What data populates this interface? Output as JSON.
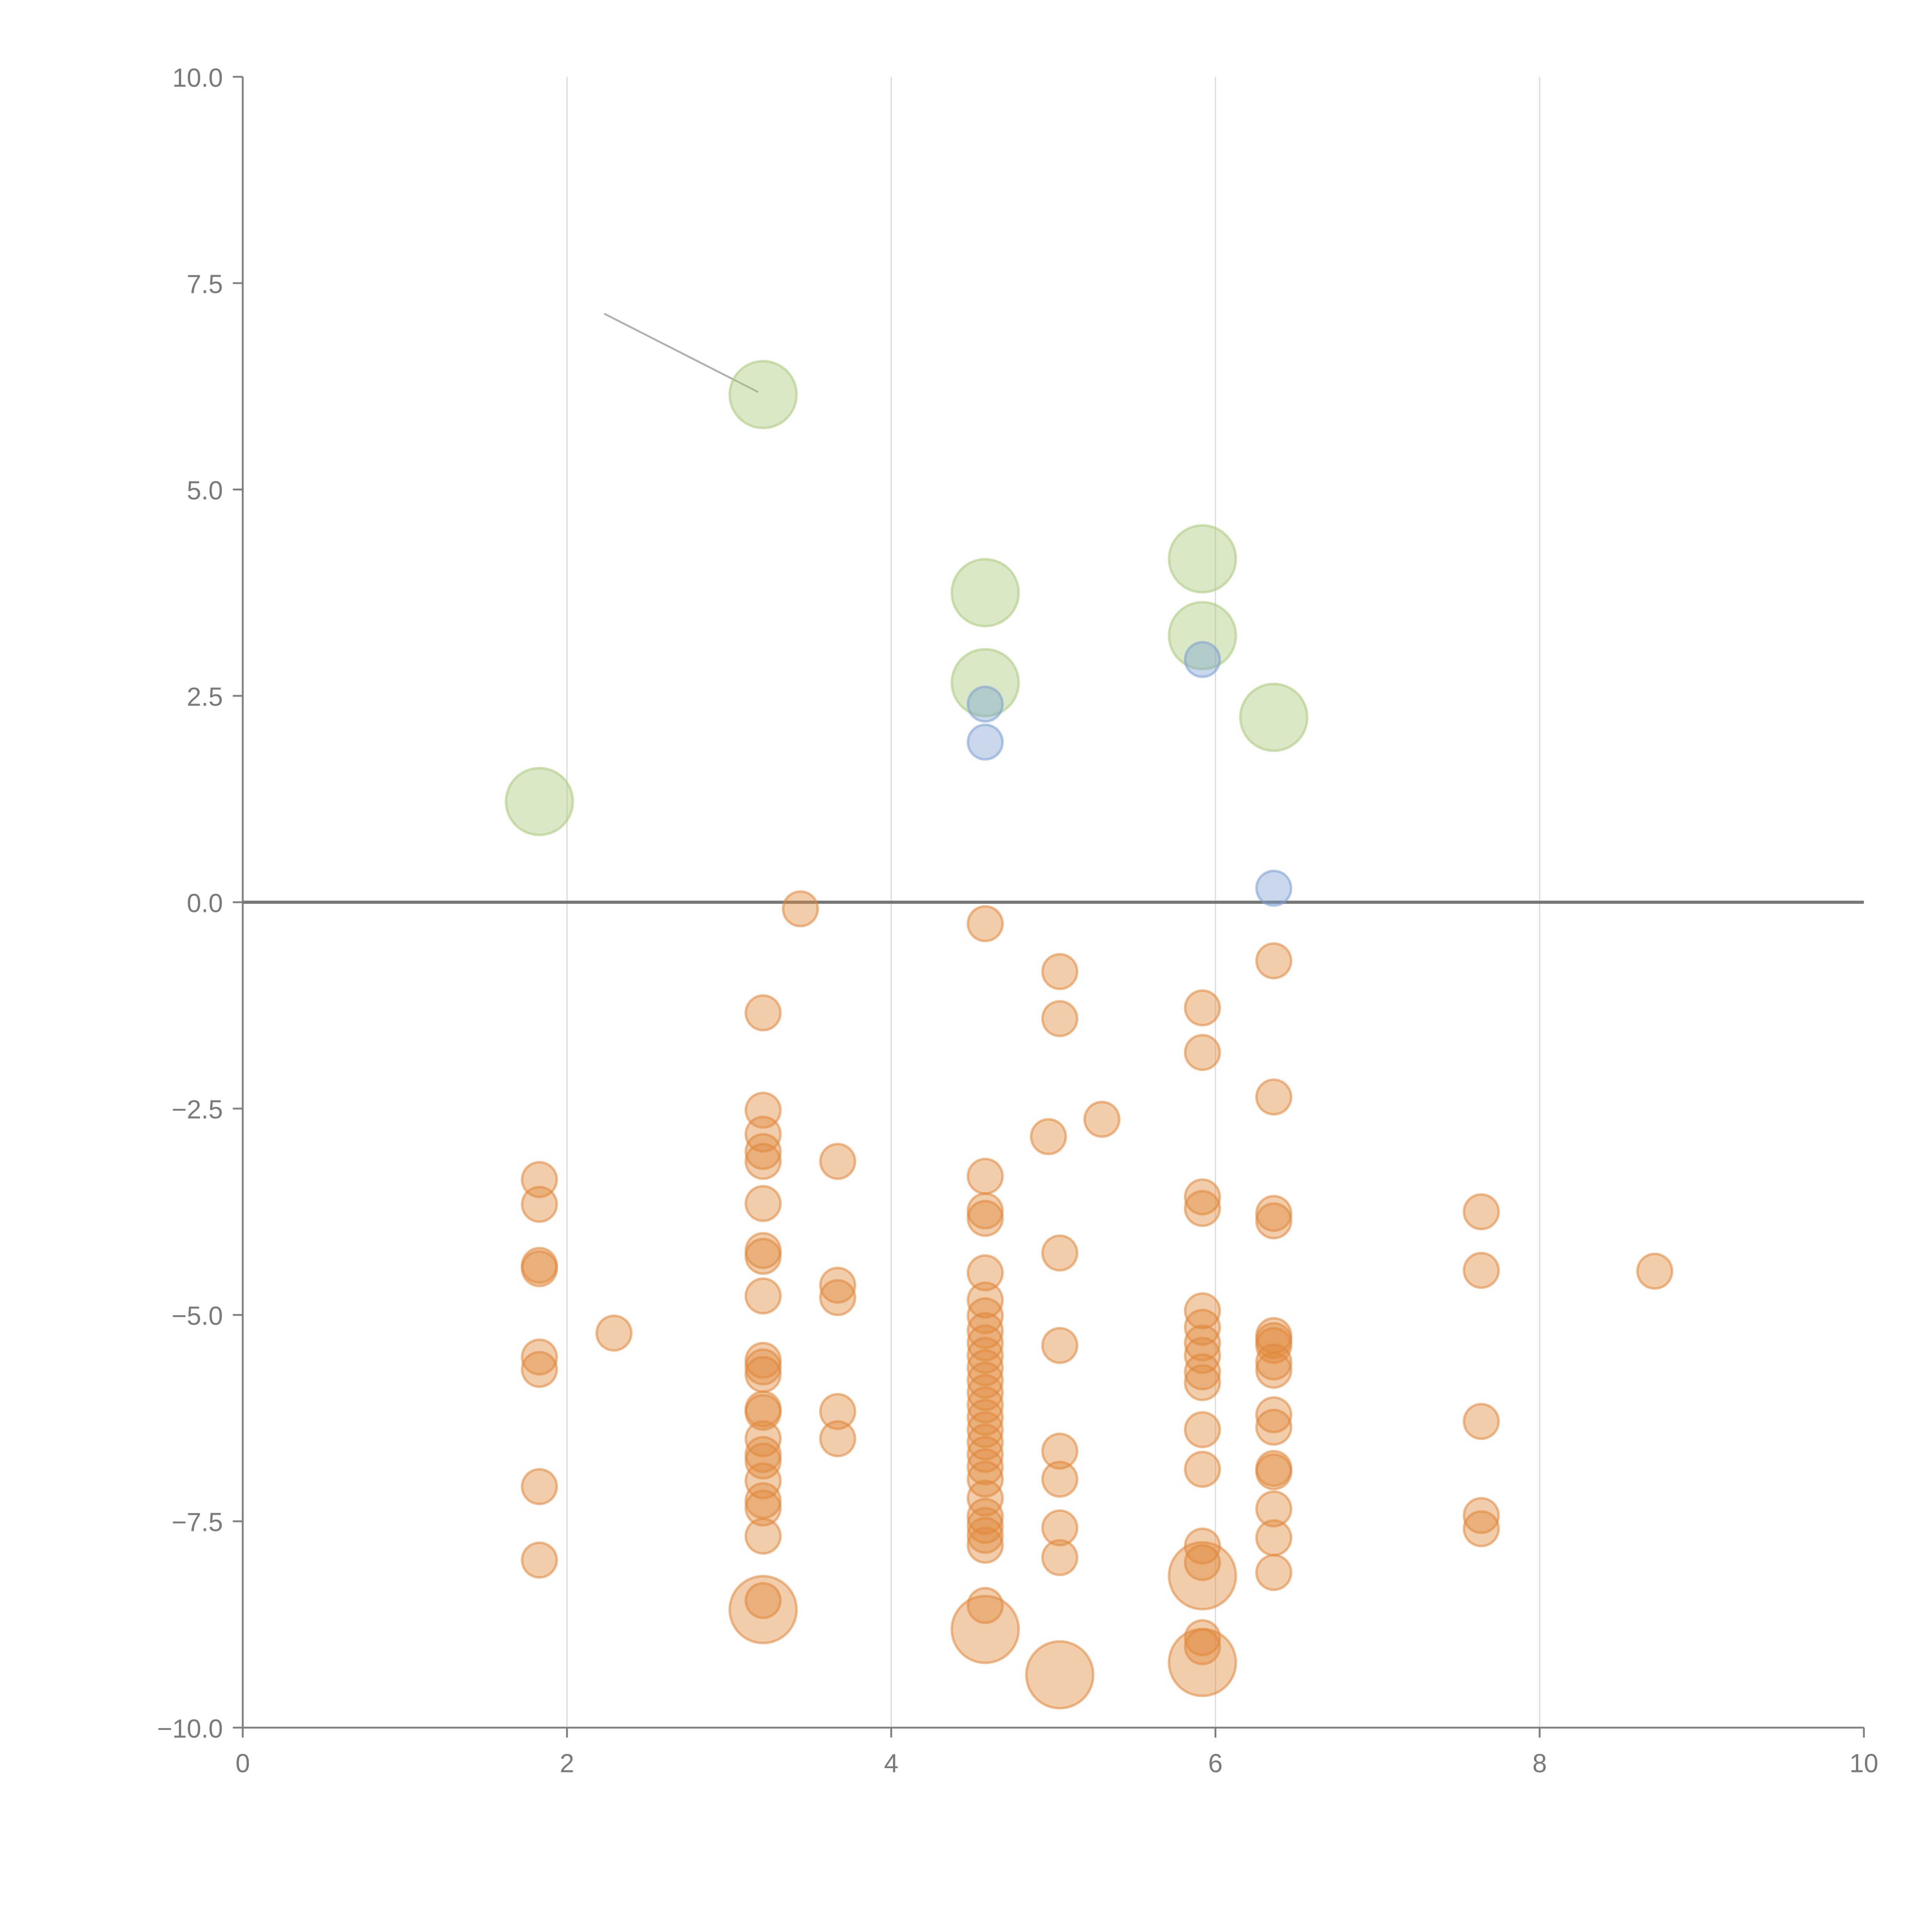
{
  "chart_data": {
    "type": "scatter",
    "title": "",
    "xlabel": "",
    "ylabel": "",
    "xlim": [
      0,
      10
    ],
    "ylim": [
      -10,
      10
    ],
    "xticks": [
      0,
      2,
      4,
      6,
      8,
      10
    ],
    "xtick_labels": [
      "0",
      "2",
      "4",
      "6",
      "8",
      "10"
    ],
    "yticks": [
      10,
      7.5,
      5,
      2.5,
      0,
      -2.5,
      -5,
      -7.5,
      -10
    ],
    "ytick_labels": [
      "10.0",
      "7.5",
      "5.0",
      "2.5",
      "0.0",
      "−2.5",
      "−5.0",
      "−7.5",
      "−10.0"
    ],
    "grid": "vertical",
    "reference_line_y": 0,
    "colors": {
      "green": "#a9c97a",
      "blue": "#7b9fd2",
      "orange": "#e0873a",
      "axis": "#808080",
      "grid": "#dcdcdc"
    },
    "annotation_line": [
      [
        2.23,
        7.13
      ],
      [
        3.18,
        6.18
      ]
    ],
    "series": [
      {
        "name": "green",
        "color": "#a9c97a",
        "size": 2,
        "points": [
          [
            3.21,
            6.15
          ],
          [
            1.83,
            1.22
          ],
          [
            4.58,
            3.75
          ],
          [
            4.58,
            2.66
          ],
          [
            5.92,
            4.16
          ],
          [
            5.92,
            3.23
          ],
          [
            6.36,
            2.24
          ]
        ]
      },
      {
        "name": "blue",
        "color": "#7b9fd2",
        "size": 1,
        "points": [
          [
            4.58,
            2.4
          ],
          [
            4.58,
            1.94
          ],
          [
            5.92,
            2.94
          ],
          [
            6.36,
            0.17
          ]
        ]
      },
      {
        "name": "orange-large",
        "color": "#e0873a",
        "size": 2,
        "points": [
          [
            3.21,
            -8.57
          ],
          [
            4.58,
            -8.81
          ],
          [
            5.04,
            -9.36
          ],
          [
            5.92,
            -8.16
          ],
          [
            5.92,
            -9.21
          ]
        ]
      },
      {
        "name": "orange",
        "color": "#e0873a",
        "size": 1,
        "points": [
          [
            1.83,
            -3.36
          ],
          [
            1.83,
            -3.66
          ],
          [
            1.83,
            -4.4
          ],
          [
            1.83,
            -4.44
          ],
          [
            1.83,
            -5.51
          ],
          [
            1.83,
            -5.66
          ],
          [
            1.83,
            -7.08
          ],
          [
            1.83,
            -7.97
          ],
          [
            2.29,
            -5.22
          ],
          [
            3.21,
            -1.34
          ],
          [
            3.21,
            -2.52
          ],
          [
            3.21,
            -2.81
          ],
          [
            3.21,
            -3.02
          ],
          [
            3.21,
            -3.14
          ],
          [
            3.21,
            -3.65
          ],
          [
            3.21,
            -4.22
          ],
          [
            3.21,
            -4.29
          ],
          [
            3.21,
            -4.77
          ],
          [
            3.21,
            -5.55
          ],
          [
            3.21,
            -5.63
          ],
          [
            3.21,
            -5.72
          ],
          [
            3.21,
            -6.14
          ],
          [
            3.21,
            -6.18
          ],
          [
            3.21,
            -6.5
          ],
          [
            3.21,
            -6.69
          ],
          [
            3.21,
            -6.77
          ],
          [
            3.21,
            -7.01
          ],
          [
            3.21,
            -7.25
          ],
          [
            3.21,
            -7.34
          ],
          [
            3.21,
            -7.68
          ],
          [
            3.21,
            -8.46
          ],
          [
            3.44,
            -0.08
          ],
          [
            3.67,
            -3.14
          ],
          [
            3.67,
            -4.64
          ],
          [
            3.67,
            -4.79
          ],
          [
            3.67,
            -6.17
          ],
          [
            3.67,
            -6.5
          ],
          [
            4.58,
            -0.26
          ],
          [
            4.58,
            -3.32
          ],
          [
            4.58,
            -3.74
          ],
          [
            4.58,
            -3.83
          ],
          [
            4.58,
            -4.49
          ],
          [
            4.58,
            -4.82
          ],
          [
            4.58,
            -5.01
          ],
          [
            4.58,
            -5.19
          ],
          [
            4.58,
            -5.34
          ],
          [
            4.58,
            -5.49
          ],
          [
            4.58,
            -5.64
          ],
          [
            4.58,
            -5.79
          ],
          [
            4.58,
            -5.94
          ],
          [
            4.58,
            -6.09
          ],
          [
            4.58,
            -6.24
          ],
          [
            4.58,
            -6.39
          ],
          [
            4.58,
            -6.54
          ],
          [
            4.58,
            -6.69
          ],
          [
            4.58,
            -6.84
          ],
          [
            4.58,
            -6.99
          ],
          [
            4.58,
            -7.22
          ],
          [
            4.58,
            -7.44
          ],
          [
            4.58,
            -7.55
          ],
          [
            4.58,
            -7.67
          ],
          [
            4.58,
            -7.79
          ],
          [
            4.58,
            -8.52
          ],
          [
            4.97,
            -2.84
          ],
          [
            5.3,
            -2.63
          ],
          [
            5.04,
            -0.84
          ],
          [
            5.04,
            -1.41
          ],
          [
            5.04,
            -4.25
          ],
          [
            5.04,
            -5.37
          ],
          [
            5.04,
            -6.65
          ],
          [
            5.04,
            -6.99
          ],
          [
            5.04,
            -7.58
          ],
          [
            5.04,
            -7.94
          ],
          [
            5.92,
            -1.28
          ],
          [
            5.92,
            -1.82
          ],
          [
            5.92,
            -3.57
          ],
          [
            5.92,
            -3.71
          ],
          [
            5.92,
            -4.95
          ],
          [
            5.92,
            -5.15
          ],
          [
            5.92,
            -5.34
          ],
          [
            5.92,
            -5.49
          ],
          [
            5.92,
            -5.69
          ],
          [
            5.92,
            -5.82
          ],
          [
            5.92,
            -6.39
          ],
          [
            5.92,
            -6.87
          ],
          [
            5.92,
            -7.8
          ],
          [
            5.92,
            -8.0
          ],
          [
            5.92,
            -8.91
          ],
          [
            5.92,
            -9.02
          ],
          [
            6.36,
            -0.71
          ],
          [
            6.36,
            -2.36
          ],
          [
            6.36,
            -3.77
          ],
          [
            6.36,
            -3.86
          ],
          [
            6.36,
            -5.25
          ],
          [
            6.36,
            -5.31
          ],
          [
            6.36,
            -5.37
          ],
          [
            6.36,
            -5.57
          ],
          [
            6.36,
            -5.67
          ],
          [
            6.36,
            -6.21
          ],
          [
            6.36,
            -6.36
          ],
          [
            6.36,
            -6.86
          ],
          [
            6.36,
            -6.9
          ],
          [
            6.36,
            -7.35
          ],
          [
            6.36,
            -7.7
          ],
          [
            6.36,
            -8.12
          ],
          [
            7.64,
            -3.75
          ],
          [
            7.64,
            -4.46
          ],
          [
            7.64,
            -6.29
          ],
          [
            7.64,
            -7.43
          ],
          [
            7.64,
            -7.59
          ],
          [
            8.71,
            -4.47
          ]
        ]
      }
    ]
  }
}
